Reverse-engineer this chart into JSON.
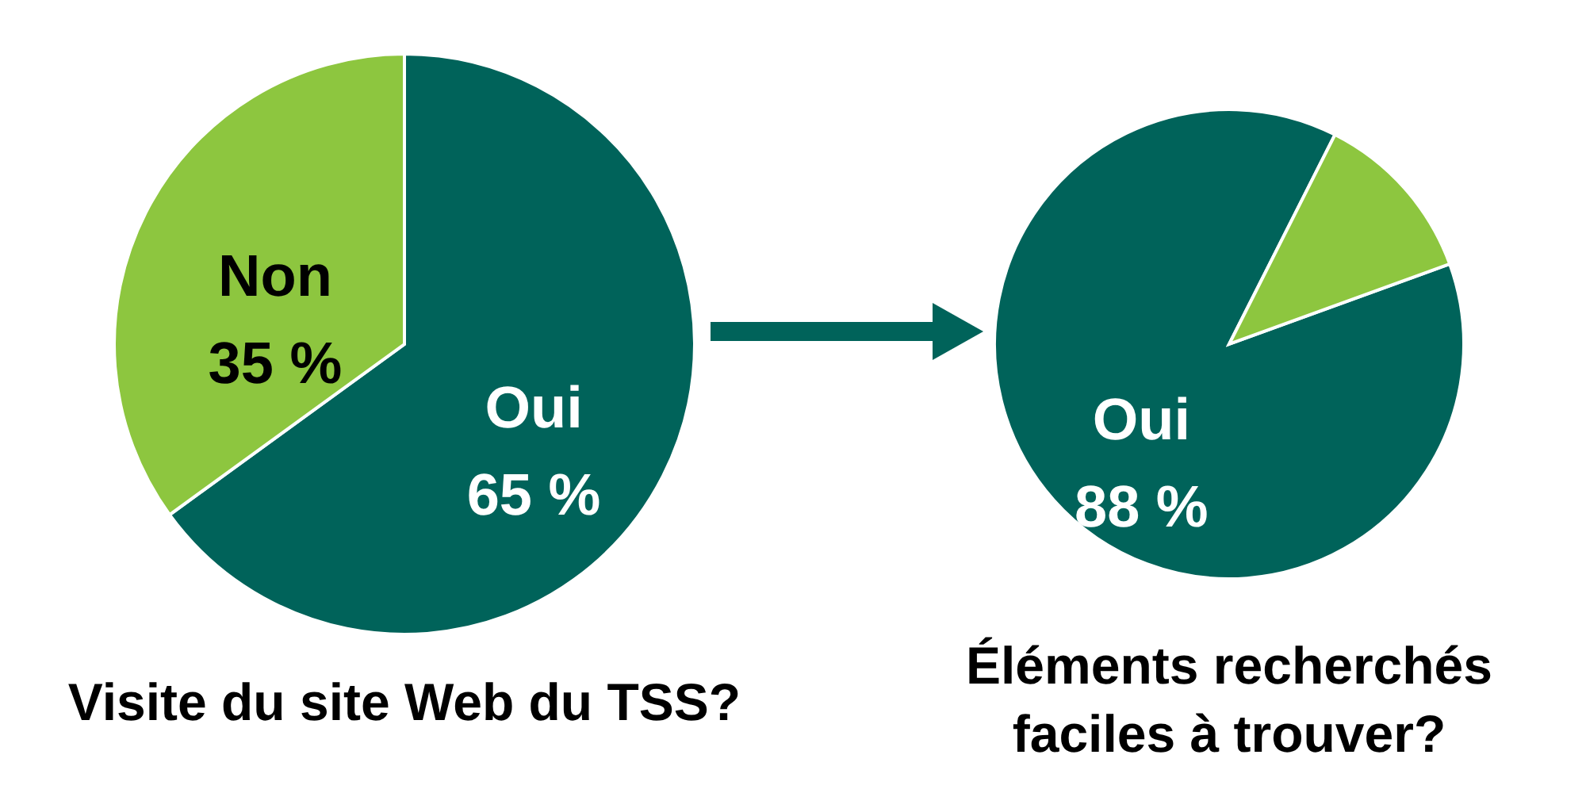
{
  "chart_data": [
    {
      "type": "pie",
      "title": "Visite du site Web du TSS?",
      "categories": [
        "Oui",
        "Non"
      ],
      "values": [
        65,
        35
      ],
      "colors": [
        "#00635a",
        "#8dc63f"
      ],
      "value_labels": [
        "65 %",
        "35 %"
      ]
    },
    {
      "type": "pie",
      "title": "Éléments recherchés faciles à trouver?",
      "categories": [
        "Oui",
        null
      ],
      "values": [
        88,
        12
      ],
      "colors": [
        "#00635a",
        "#8dc63f"
      ],
      "value_labels": [
        "88 %",
        null
      ]
    }
  ]
}
